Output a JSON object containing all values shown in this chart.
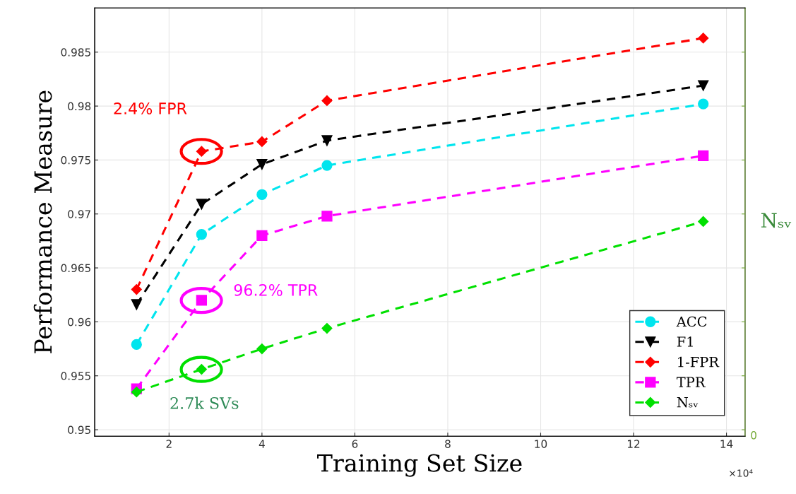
{
  "chart_data": {
    "type": "line",
    "xlabel": "Training Set Size",
    "ylabel": "Performance Measure",
    "y2label": "Nₛᵥ",
    "x": [
      1.3,
      2.7,
      4.0,
      5.4,
      13.5
    ],
    "xlim": [
      0.4,
      14.4
    ],
    "xticks": [
      2,
      4,
      6,
      8,
      10,
      12,
      14
    ],
    "ylim": [
      0.9494,
      0.9891
    ],
    "yticks": [
      0.95,
      0.955,
      0.96,
      0.965,
      0.97,
      0.975,
      0.98,
      0.985
    ],
    "grid": true,
    "legend": "bottom right",
    "line_style": "dashed",
    "series": [
      {
        "name": "ACC",
        "color": "#00e5ee",
        "marker": "circle",
        "values": [
          0.9579,
          0.9681,
          0.9718,
          0.9745,
          0.9802
        ]
      },
      {
        "name": "F1",
        "color": "#000000",
        "marker": "triangle",
        "values": [
          0.9616,
          0.9709,
          0.9746,
          0.9768,
          0.9819
        ]
      },
      {
        "name": "1-FPR",
        "color": "#ff0000",
        "marker": "diamond",
        "values": [
          0.963,
          0.9758,
          0.9767,
          0.9805,
          0.9863
        ]
      },
      {
        "name": "TPR",
        "color": "#ff00ff",
        "marker": "square",
        "values": [
          0.9538,
          0.962,
          0.968,
          0.9698,
          0.9754
        ]
      },
      {
        "name": "Nₛᵥ",
        "color": "#00e000",
        "marker": "diamond",
        "values": [
          0.9535,
          0.9556,
          0.9575,
          0.9594,
          0.9693
        ]
      }
    ],
    "annotations": [
      "2.4% FPR",
      "96.2% TPR",
      "2.7k SVs",
      "×10⁴",
      "0"
    ]
  }
}
